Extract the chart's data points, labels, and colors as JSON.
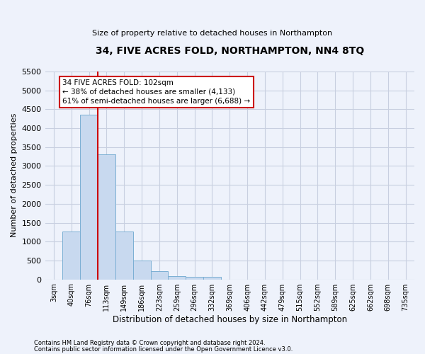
{
  "title": "34, FIVE ACRES FOLD, NORTHAMPTON, NN4 8TQ",
  "subtitle": "Size of property relative to detached houses in Northampton",
  "xlabel": "Distribution of detached houses by size in Northampton",
  "ylabel": "Number of detached properties",
  "footer_line1": "Contains HM Land Registry data © Crown copyright and database right 2024.",
  "footer_line2": "Contains public sector information licensed under the Open Government Licence v3.0.",
  "bar_values": [
    0,
    1270,
    4350,
    3300,
    1270,
    490,
    220,
    90,
    60,
    60,
    0,
    0,
    0,
    0,
    0,
    0,
    0,
    0,
    0,
    0,
    0
  ],
  "x_tick_labels": [
    "3sqm",
    "40sqm",
    "76sqm",
    "113sqm",
    "149sqm",
    "186sqm",
    "223sqm",
    "259sqm",
    "296sqm",
    "332sqm",
    "369sqm",
    "406sqm",
    "442sqm",
    "479sqm",
    "515sqm",
    "552sqm",
    "589sqm",
    "625sqm",
    "662sqm",
    "698sqm",
    "735sqm"
  ],
  "bar_color": "#c8d9ef",
  "bar_edge_color": "#7bafd4",
  "grid_color": "#c8cfe0",
  "background_color": "#eef2fb",
  "vline_color": "#cc0000",
  "vline_position": 2.5,
  "annotation_text": "34 FIVE ACRES FOLD: 102sqm\n← 38% of detached houses are smaller (4,133)\n61% of semi-detached houses are larger (6,688) →",
  "annotation_box_color": "#ffffff",
  "annotation_box_edge_color": "#cc0000",
  "ylim": [
    0,
    5500
  ],
  "ytick_step": 500
}
